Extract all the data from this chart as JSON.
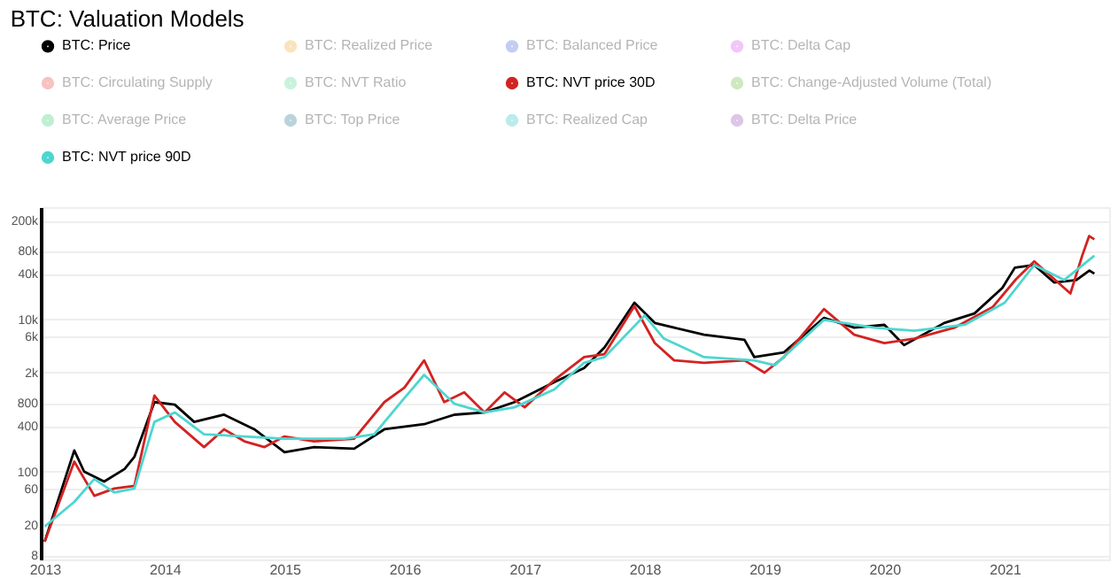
{
  "chart_data": {
    "type": "line",
    "title": "BTC: Valuation Models",
    "series": [
      {
        "name": "BTC: Price",
        "color": "#000000",
        "x": [
          "2013-01",
          "2013-04",
          "2013-05",
          "2013-07",
          "2013-09",
          "2013-10",
          "2013-12",
          "2014-02",
          "2014-04",
          "2014-07",
          "2014-10",
          "2015-01",
          "2015-04",
          "2015-08",
          "2015-11",
          "2016-03",
          "2016-06",
          "2016-09",
          "2016-12",
          "2017-04",
          "2017-07",
          "2017-09",
          "2017-12",
          "2018-02",
          "2018-04",
          "2018-07",
          "2018-11",
          "2018-12",
          "2019-03",
          "2019-07",
          "2019-10",
          "2020-01",
          "2020-03",
          "2020-07",
          "2020-10",
          "2020-12-25",
          "2021-02",
          "2021-04",
          "2021-06",
          "2021-08-07",
          "2021-09-16",
          "2021-10-01"
        ],
        "values": [
          12,
          190,
          100,
          74,
          108,
          156,
          820,
          760,
          450,
          560,
          360,
          180,
          210,
          200,
          360,
          420,
          560,
          600,
          820,
          1500,
          2300,
          4300,
          16600,
          9000,
          7800,
          6300,
          5400,
          3200,
          3700,
          10500,
          7800,
          8500,
          4600,
          9000,
          12000,
          26000,
          48000,
          52000,
          30600,
          33000,
          44000,
          40000
        ]
      },
      {
        "name": "BTC: Realized Price",
        "color": "#f0a830"
      },
      {
        "name": "BTC: Balanced Price",
        "color": "#3b5bdb"
      },
      {
        "name": "BTC: Delta Cap",
        "color": "#d946ef"
      },
      {
        "name": "BTC: Circulating Supply",
        "color": "#e53935"
      },
      {
        "name": "BTC: NVT Ratio",
        "color": "#4cd98b"
      },
      {
        "name": "BTC: NVT price 30D",
        "color": "#d32222",
        "x": [
          "2013-01",
          "2013-04",
          "2013-06",
          "2013-08",
          "2013-10",
          "2013-12",
          "2014-02",
          "2014-05",
          "2014-07",
          "2014-09",
          "2014-11",
          "2015-01",
          "2015-04",
          "2015-08",
          "2015-11",
          "2016-01",
          "2016-03",
          "2016-05",
          "2016-07",
          "2016-09",
          "2016-11",
          "2017-01",
          "2017-04",
          "2017-07",
          "2017-09",
          "2017-12",
          "2018-02",
          "2018-04",
          "2018-07",
          "2018-11",
          "2019-01",
          "2019-03",
          "2019-07",
          "2019-10",
          "2020-01",
          "2020-04",
          "2020-08",
          "2020-11-25",
          "2021-02-05",
          "2021-04",
          "2021-07-20",
          "2021-08-25",
          "2021-09-15",
          "2021-10-01"
        ],
        "values": [
          12,
          135,
          48,
          60,
          65,
          1000,
          450,
          210,
          360,
          250,
          210,
          290,
          250,
          270,
          820,
          1270,
          2900,
          820,
          1100,
          600,
          1100,
          700,
          1600,
          3200,
          3500,
          15000,
          4900,
          2900,
          2700,
          2900,
          2000,
          3200,
          13700,
          6300,
          4900,
          5600,
          7800,
          14500,
          34000,
          58000,
          22000,
          69000,
          125000,
          113000
        ]
      },
      {
        "name": "BTC: Change-Adjusted Volume (Total)",
        "color": "#5fb82f"
      },
      {
        "name": "BTC: Average Price",
        "color": "#2ecc71"
      },
      {
        "name": "BTC: Top Price",
        "color": "#1f6f8b"
      },
      {
        "name": "BTC: Realized Cap",
        "color": "#20c0c0"
      },
      {
        "name": "BTC: Delta Price",
        "color": "#8e44ad"
      },
      {
        "name": "BTC: NVT price 90D",
        "color": "#4dd6d0",
        "x": [
          "2013-01",
          "2013-04",
          "2013-06",
          "2013-08",
          "2013-10",
          "2013-12",
          "2014-02",
          "2014-05",
          "2014-09",
          "2015-01",
          "2015-07",
          "2015-10",
          "2016-01",
          "2016-03",
          "2016-06",
          "2016-09",
          "2016-12",
          "2017-04",
          "2017-07",
          "2017-09",
          "2018-01",
          "2018-03",
          "2018-07",
          "2018-12",
          "2019-02",
          "2019-07",
          "2019-12",
          "2020-04",
          "2020-09",
          "2021-01",
          "2021-04",
          "2021-07",
          "2021-10-01"
        ],
        "values": [
          19,
          40,
          80,
          53,
          60,
          450,
          600,
          310,
          290,
          270,
          270,
          310,
          930,
          1870,
          780,
          600,
          700,
          1200,
          2700,
          3200,
          11300,
          5600,
          3200,
          2900,
          2500,
          9900,
          7800,
          7100,
          8500,
          16600,
          52000,
          33000,
          69000
        ]
      }
    ],
    "xlim": [
      "2012-12-20",
      "2021-11-15"
    ],
    "xticks": [
      "2013",
      "2014",
      "2015",
      "2016",
      "2017",
      "2018",
      "2019",
      "2020",
      "2021"
    ],
    "log": true,
    "ylim": [
      7,
      300000
    ],
    "yticks": [
      8,
      20,
      60,
      100,
      400,
      800,
      {
        "value": 2000,
        "label": "2k"
      },
      {
        "value": 6000,
        "label": "6k"
      },
      {
        "value": 10000,
        "label": "10k"
      },
      {
        "value": 40000,
        "label": "40k"
      },
      {
        "value": 80000,
        "label": "80k"
      },
      {
        "value": 200000,
        "label": "200k"
      }
    ],
    "grid": "y",
    "legend": "top"
  }
}
